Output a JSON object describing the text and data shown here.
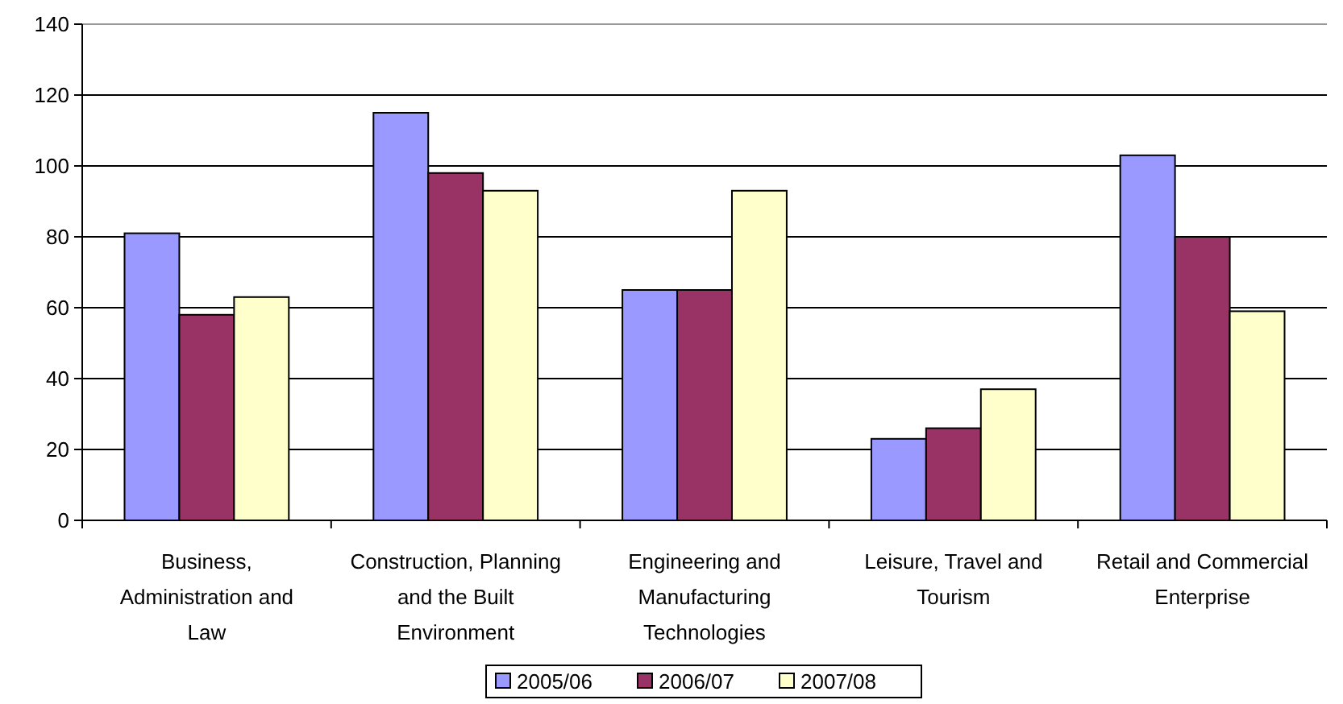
{
  "chart_data": {
    "type": "bar",
    "categories": [
      "Business, Administration and Law",
      "Construction, Planning and the Built Environment",
      "Engineering and Manufacturing Technologies",
      "Leisure, Travel and Tourism",
      "Retail and Commercial Enterprise"
    ],
    "series": [
      {
        "name": "2005/06",
        "color": "#9999ff",
        "values": [
          81,
          115,
          65,
          23,
          103
        ]
      },
      {
        "name": "2006/07",
        "color": "#993366",
        "values": [
          58,
          98,
          65,
          26,
          80
        ]
      },
      {
        "name": "2007/08",
        "color": "#ffffcc",
        "values": [
          63,
          93,
          93,
          37,
          59
        ]
      }
    ],
    "ylim": [
      0,
      140
    ],
    "yticks": [
      0,
      20,
      40,
      60,
      80,
      100,
      120,
      140
    ],
    "grid": "y",
    "legend": "bottom"
  }
}
